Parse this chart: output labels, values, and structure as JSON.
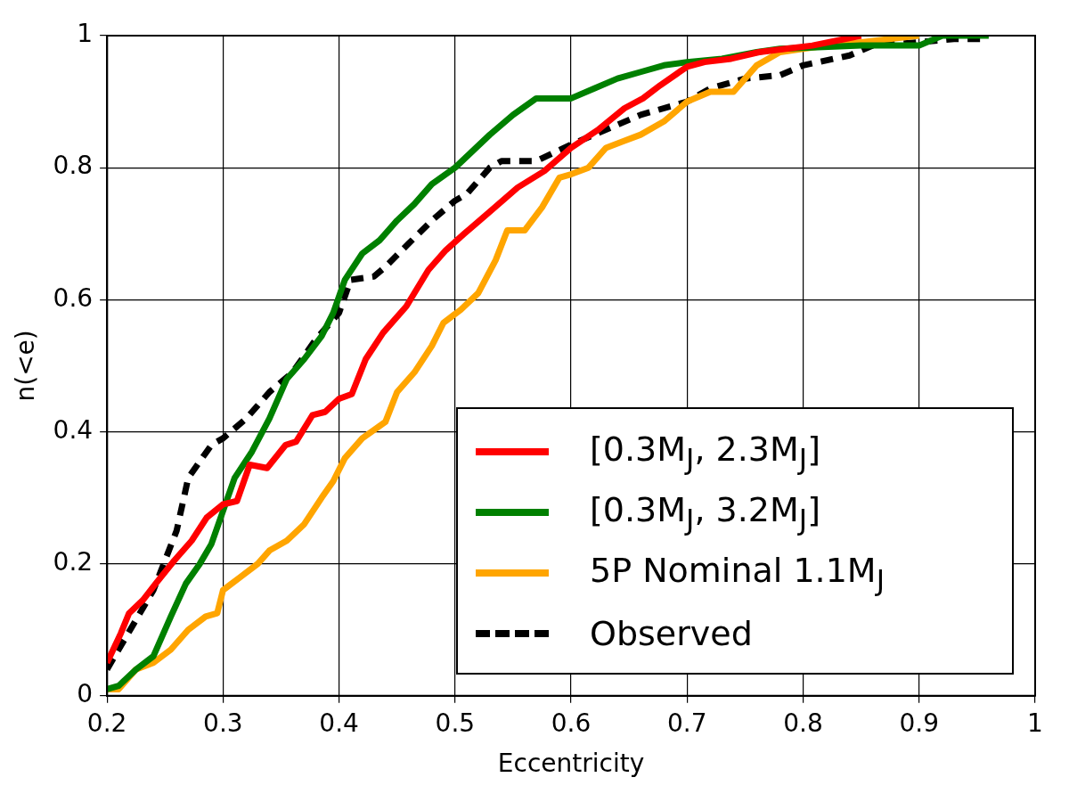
{
  "chart_data": {
    "type": "line",
    "xlabel": "Eccentricity",
    "ylabel": "n(<e)",
    "xlim": [
      0.2,
      1
    ],
    "ylim": [
      0,
      1
    ],
    "xticks": [
      0.2,
      0.3,
      0.4,
      0.5,
      0.6,
      0.7,
      0.8,
      0.9,
      1
    ],
    "yticks": [
      0,
      0.2,
      0.4,
      0.6,
      0.8,
      1
    ],
    "grid": true,
    "legend": "bottom right",
    "marker": "none",
    "series": [
      {
        "name": "[0.3M$_{J}$, 2.3M$_{J}$]",
        "color": "#ff0000",
        "line_style": "solid",
        "x": [
          0.2,
          0.212,
          0.219,
          0.231,
          0.242,
          0.258,
          0.273,
          0.286,
          0.3,
          0.312,
          0.323,
          0.338,
          0.354,
          0.363,
          0.377,
          0.388,
          0.4,
          0.411,
          0.423,
          0.438,
          0.458,
          0.477,
          0.492,
          0.508,
          0.531,
          0.554,
          0.577,
          0.6,
          0.623,
          0.646,
          0.662,
          0.677,
          0.7,
          0.715,
          0.738,
          0.762,
          0.785,
          0.808,
          0.85
        ],
        "values": [
          0.05,
          0.095,
          0.125,
          0.145,
          0.17,
          0.205,
          0.235,
          0.27,
          0.29,
          0.295,
          0.35,
          0.345,
          0.38,
          0.385,
          0.425,
          0.43,
          0.45,
          0.457,
          0.51,
          0.55,
          0.59,
          0.645,
          0.675,
          0.7,
          0.735,
          0.77,
          0.795,
          0.83,
          0.857,
          0.89,
          0.905,
          0.925,
          0.953,
          0.96,
          0.965,
          0.975,
          0.98,
          0.985,
          1.0
        ]
      },
      {
        "name": "[0.3M$_{J}$, 3.2M$_{J}$]",
        "color": "#008000",
        "line_style": "solid",
        "x": [
          0.2,
          0.21,
          0.225,
          0.24,
          0.255,
          0.268,
          0.28,
          0.29,
          0.3,
          0.31,
          0.325,
          0.34,
          0.355,
          0.37,
          0.385,
          0.395,
          0.405,
          0.42,
          0.435,
          0.45,
          0.465,
          0.48,
          0.5,
          0.515,
          0.53,
          0.55,
          0.57,
          0.6,
          0.62,
          0.64,
          0.66,
          0.68,
          0.7,
          0.73,
          0.76,
          0.78,
          0.85,
          0.9,
          0.92,
          0.96
        ],
        "values": [
          0.01,
          0.015,
          0.04,
          0.06,
          0.12,
          0.17,
          0.2,
          0.23,
          0.28,
          0.33,
          0.37,
          0.42,
          0.48,
          0.51,
          0.545,
          0.58,
          0.63,
          0.67,
          0.69,
          0.72,
          0.745,
          0.775,
          0.8,
          0.825,
          0.85,
          0.88,
          0.905,
          0.905,
          0.92,
          0.935,
          0.945,
          0.955,
          0.96,
          0.965,
          0.975,
          0.98,
          0.985,
          0.985,
          1.0,
          1.0
        ]
      },
      {
        "name": "5P Nominal 1.1M$_{J}$",
        "color": "#ffa500",
        "line_style": "solid",
        "x": [
          0.2,
          0.21,
          0.225,
          0.24,
          0.255,
          0.27,
          0.285,
          0.295,
          0.3,
          0.315,
          0.33,
          0.34,
          0.355,
          0.37,
          0.385,
          0.395,
          0.405,
          0.42,
          0.44,
          0.45,
          0.465,
          0.48,
          0.49,
          0.505,
          0.52,
          0.535,
          0.545,
          0.56,
          0.575,
          0.59,
          0.6,
          0.615,
          0.63,
          0.645,
          0.66,
          0.68,
          0.7,
          0.72,
          0.74,
          0.76,
          0.78,
          0.82,
          0.85,
          0.9
        ],
        "values": [
          0.01,
          0.01,
          0.04,
          0.05,
          0.07,
          0.1,
          0.12,
          0.125,
          0.16,
          0.18,
          0.2,
          0.22,
          0.235,
          0.26,
          0.3,
          0.325,
          0.36,
          0.39,
          0.415,
          0.46,
          0.49,
          0.53,
          0.565,
          0.585,
          0.61,
          0.66,
          0.705,
          0.705,
          0.74,
          0.785,
          0.79,
          0.8,
          0.83,
          0.84,
          0.85,
          0.87,
          0.9,
          0.915,
          0.915,
          0.955,
          0.975,
          0.985,
          0.99,
          1.0
        ]
      },
      {
        "name": "Observed",
        "color": "#000000",
        "line_style": "dashed",
        "x": [
          0.2,
          0.22,
          0.24,
          0.26,
          0.27,
          0.29,
          0.3,
          0.32,
          0.34,
          0.36,
          0.38,
          0.4,
          0.41,
          0.43,
          0.44,
          0.46,
          0.48,
          0.5,
          0.51,
          0.53,
          0.54,
          0.57,
          0.6,
          0.62,
          0.66,
          0.7,
          0.72,
          0.75,
          0.78,
          0.8,
          0.84,
          0.86,
          0.9,
          0.93,
          0.96
        ],
        "values": [
          0.04,
          0.1,
          0.16,
          0.25,
          0.33,
          0.38,
          0.39,
          0.42,
          0.46,
          0.49,
          0.54,
          0.58,
          0.63,
          0.635,
          0.65,
          0.685,
          0.72,
          0.75,
          0.76,
          0.8,
          0.81,
          0.81,
          0.835,
          0.85,
          0.88,
          0.9,
          0.92,
          0.935,
          0.94,
          0.955,
          0.97,
          0.985,
          0.99,
          0.995,
          0.995
        ]
      }
    ]
  }
}
